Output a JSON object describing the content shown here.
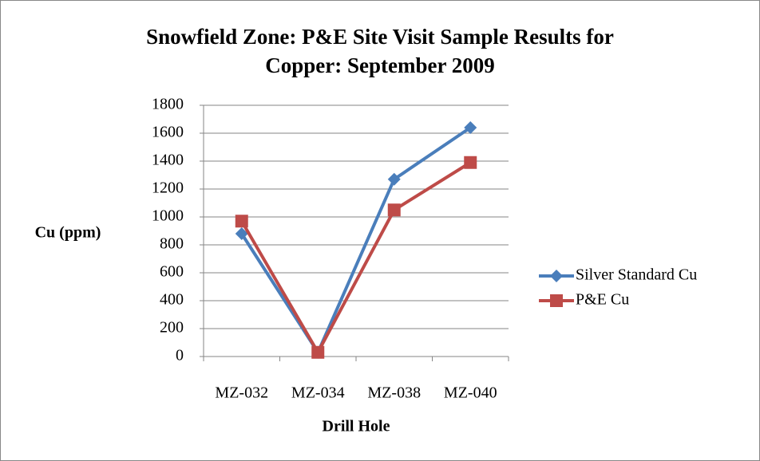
{
  "chart_data": {
    "type": "line",
    "title": [
      "Snowfield Zone: P&E Site Visit Sample Results for",
      "Copper: September 2009"
    ],
    "x_label": "Drill Hole",
    "y_label": "Cu (ppm)",
    "categories": [
      "MZ-032",
      "MZ-034",
      "MZ-038",
      "MZ-040"
    ],
    "series": [
      {
        "name": "Silver Standard Cu",
        "color": "#4a7ebb",
        "marker": "diamond",
        "values": [
          880,
          30,
          1270,
          1640
        ]
      },
      {
        "name": "P&E Cu",
        "color": "#be4b48",
        "marker": "square",
        "values": [
          970,
          30,
          1050,
          1390
        ]
      }
    ],
    "ylim": [
      0,
      1800
    ],
    "yticks": [
      0,
      200,
      400,
      600,
      800,
      1000,
      1200,
      1400,
      1600,
      1800
    ],
    "grid": true,
    "legend": "right"
  }
}
